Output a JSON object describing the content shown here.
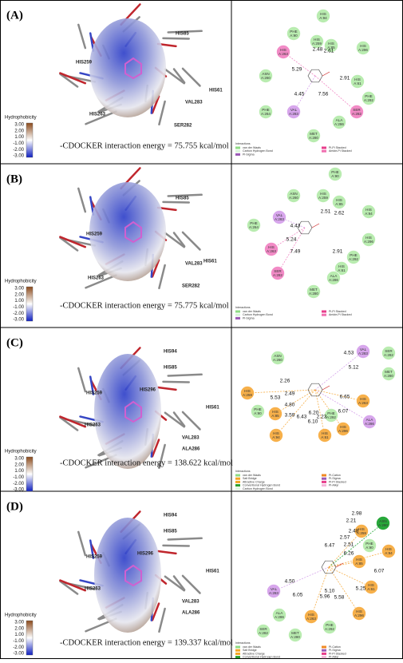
{
  "panels": [
    {
      "label": "(A)",
      "structure_labels": [
        "HIS85",
        "HIS259",
        "VAL283",
        "HIS61",
        "HIS263",
        "SER282"
      ],
      "hydrophobicity": {
        "title": "Hydrophobicity",
        "ticks": [
          "3.00",
          "2.00",
          "1.00",
          "-1.00",
          "-2.00",
          "-3.00"
        ]
      },
      "energy": "-CDOCKER interaction energy = 75.755 kcal/mol",
      "residues": [
        {
          "name": "HIS",
          "id": "A:94",
          "color": "#b9ecb0"
        },
        {
          "name": "PHE",
          "id": "A:90",
          "color": "#b9ecb0"
        },
        {
          "name": "HIS",
          "id": "A:259",
          "color": "#b9ecb0"
        },
        {
          "name": "HIS",
          "id": "A:85",
          "color": "#b9ecb0"
        },
        {
          "name": "HIS",
          "id": "A:263",
          "color": "#f28bc6"
        },
        {
          "name": "HIS",
          "id": "A:296",
          "color": "#b9ecb0"
        },
        {
          "name": "ASN",
          "id": "A:260",
          "color": "#b9ecb0"
        },
        {
          "name": "HIS",
          "id": "A:61",
          "color": "#b9ecb0"
        },
        {
          "name": "PHE",
          "id": "A:292",
          "color": "#b9ecb0"
        },
        {
          "name": "PHE",
          "id": "A:264",
          "color": "#b9ecb0"
        },
        {
          "name": "VAL",
          "id": "A:283",
          "color": "#d7a6ec"
        },
        {
          "name": "ALA",
          "id": "A:286",
          "color": "#b9ecb0"
        },
        {
          "name": "SER",
          "id": "A:282",
          "color": "#f28bc6"
        },
        {
          "name": "MET",
          "id": "A:280",
          "color": "#b9ecb0"
        }
      ],
      "distances": [
        "5.29",
        "2.48",
        "2.61",
        "4.45",
        "7.56",
        "2.91"
      ],
      "legend": {
        "title": "Interactions",
        "items": [
          {
            "label": "van der Waals",
            "color": "#8fdc85"
          },
          {
            "label": "Carbon Hydrogen Bond",
            "color": "#d9f5d9"
          },
          {
            "label": "Pi-Sigma",
            "color": "#9b59b6"
          },
          {
            "label": "Pi-Pi Stacked",
            "color": "#e83e8c"
          },
          {
            "label": "Amide-Pi Stacked",
            "color": "#f06fb0"
          }
        ]
      }
    },
    {
      "label": "(B)",
      "structure_labels": [
        "HIS85",
        "HIS259",
        "HIS61",
        "VAL283",
        "HIS263",
        "SER282"
      ],
      "hydrophobicity": {
        "title": "Hydrophobicity",
        "ticks": [
          "3.00",
          "2.00",
          "1.00",
          "-1.00",
          "-2.00",
          "-3.00"
        ]
      },
      "energy": "-CDOCKER interaction energy = 75.775 kcal/mol",
      "residues": [
        {
          "name": "PHE",
          "id": "A:90",
          "color": "#b9ecb0"
        },
        {
          "name": "ASN",
          "id": "A:260",
          "color": "#b9ecb0"
        },
        {
          "name": "HIS",
          "id": "A:259",
          "color": "#b9ecb0"
        },
        {
          "name": "HIS",
          "id": "A:85",
          "color": "#b9ecb0"
        },
        {
          "name": "HIS",
          "id": "A:94",
          "color": "#b9ecb0"
        },
        {
          "name": "PHE",
          "id": "A:264",
          "color": "#b9ecb0"
        },
        {
          "name": "VAL",
          "id": "A:283",
          "color": "#d7a6ec"
        },
        {
          "name": "HIS",
          "id": "A:263",
          "color": "#f28bc6"
        },
        {
          "name": "HIS",
          "id": "A:296",
          "color": "#b9ecb0"
        },
        {
          "name": "PHE",
          "id": "A:292",
          "color": "#b9ecb0"
        },
        {
          "name": "SER",
          "id": "A:282",
          "color": "#f28bc6"
        },
        {
          "name": "HIS",
          "id": "A:61",
          "color": "#b9ecb0"
        },
        {
          "name": "ALA",
          "id": "A:286",
          "color": "#b9ecb0"
        },
        {
          "name": "MET",
          "id": "A:280",
          "color": "#b9ecb0"
        }
      ],
      "distances": [
        "4.43",
        "2.51",
        "2.62",
        "5.24",
        "7.49",
        "2.91"
      ],
      "legend": {
        "title": "Interactions",
        "items": [
          {
            "label": "van der Waals",
            "color": "#8fdc85"
          },
          {
            "label": "Carbon Hydrogen Bond",
            "color": "#d9f5d9"
          },
          {
            "label": "Pi-Sigma",
            "color": "#9b59b6"
          },
          {
            "label": "Pi-Pi Stacked",
            "color": "#e83e8c"
          },
          {
            "label": "Amide-Pi Stacked",
            "color": "#f06fb0"
          }
        ]
      }
    },
    {
      "label": "(C)",
      "structure_labels": [
        "HIS94",
        "HIS85",
        "HIS296",
        "HIS259",
        "HIS61",
        "HIS263",
        "VAL283",
        "ALA286"
      ],
      "hydrophobicity": {
        "title": "Hydrophobicity",
        "ticks": [
          "3.00",
          "2.00",
          "1.00",
          "-1.00",
          "-2.00",
          "-3.00"
        ]
      },
      "energy": "-CDOCKER interaction energy = 138.622 kcal/mol",
      "residues": [
        {
          "name": "ASN",
          "id": "A:260",
          "color": "#b9ecb0"
        },
        {
          "name": "SER",
          "id": "A:282",
          "color": "#b9ecb0"
        },
        {
          "name": "VAL",
          "id": "A:283",
          "color": "#d7a6ec"
        },
        {
          "name": "MET",
          "id": "A:280",
          "color": "#b9ecb0"
        },
        {
          "name": "HIS",
          "id": "A:259",
          "color": "#f7b04a"
        },
        {
          "name": "HIS",
          "id": "A:263",
          "color": "#f7b04a"
        },
        {
          "name": "PHE",
          "id": "A:90",
          "color": "#b9ecb0"
        },
        {
          "name": "HIS",
          "id": "A:85",
          "color": "#f7b04a"
        },
        {
          "name": "PHE",
          "id": "A:292",
          "color": "#b9ecb0"
        },
        {
          "name": "ALA",
          "id": "A:286",
          "color": "#d7a6ec"
        },
        {
          "name": "HIS",
          "id": "A:94",
          "color": "#f7b04a"
        },
        {
          "name": "HIS",
          "id": "A:61",
          "color": "#f7b04a"
        },
        {
          "name": "HIS",
          "id": "A:296",
          "color": "#f7b04a"
        }
      ],
      "distances": [
        "2.26",
        "4.53",
        "2.49",
        "5.12",
        "5.53",
        "6.65",
        "4.80",
        "3.59",
        "6.20",
        "6.43",
        "2.23",
        "6.07",
        "6.10"
      ],
      "legend": {
        "title": "Interactions",
        "items": [
          {
            "label": "van der Waals",
            "color": "#8fdc85"
          },
          {
            "label": "Salt Bridge",
            "color": "#f5a623"
          },
          {
            "label": "Attractive Charge",
            "color": "#f5a623"
          },
          {
            "label": "Conventional Hydrogen Bond",
            "color": "#2ca02c"
          },
          {
            "label": "Carbon Hydrogen Bond",
            "color": "#dff5df"
          },
          {
            "label": "Pi-Cation",
            "color": "#f08a24"
          },
          {
            "label": "Pi-Sigma",
            "color": "#9b59b6"
          },
          {
            "label": "Pi-Pi Stacked",
            "color": "#e83e8c"
          },
          {
            "label": "Pi-Alkyl",
            "color": "#f4b6d9"
          }
        ]
      }
    },
    {
      "label": "(D)",
      "structure_labels": [
        "HIS94",
        "HIS85",
        "HIS296",
        "HIS259",
        "HIS61",
        "HIS263",
        "VAL283",
        "ALA286"
      ],
      "hydrophobicity": {
        "title": "Hydrophobicity",
        "ticks": [
          "3.00",
          "2.00",
          "1.00",
          "-1.00",
          "-2.00",
          "-3.00"
        ]
      },
      "energy": "-CDOCKER interaction energy = 139.337 kcal/mol",
      "residues": [
        {
          "name": "ASN",
          "id": "A:260",
          "color": "#27a83a"
        },
        {
          "name": "HIS",
          "id": "A:259",
          "color": "#f7b04a"
        },
        {
          "name": "PHE",
          "id": "A:90",
          "color": "#b9ecb0"
        },
        {
          "name": "HIS",
          "id": "A:94",
          "color": "#f7b04a"
        },
        {
          "name": "HIS",
          "id": "A:85",
          "color": "#f7b04a"
        },
        {
          "name": "VAL",
          "id": "A:283",
          "color": "#d7a6ec"
        },
        {
          "name": "HIS",
          "id": "A:61",
          "color": "#f7b04a"
        },
        {
          "name": "ALA",
          "id": "A:286",
          "color": "#b9ecb0"
        },
        {
          "name": "HIS",
          "id": "A:263",
          "color": "#f7b04a"
        },
        {
          "name": "HIS",
          "id": "A:296",
          "color": "#f7b04a"
        },
        {
          "name": "PHE",
          "id": "A:292",
          "color": "#b9ecb0"
        },
        {
          "name": "SER",
          "id": "A:282",
          "color": "#b9ecb0"
        },
        {
          "name": "MET",
          "id": "A:280",
          "color": "#b9ecb0"
        }
      ],
      "distances": [
        "2.98",
        "2.21",
        "2.48",
        "2.57",
        "6.07",
        "2.51",
        "6.47",
        "6.26",
        "4.50",
        "5.10",
        "5.25",
        "6.05",
        "5.96",
        "5.58"
      ],
      "legend": {
        "title": "Interactions",
        "items": [
          {
            "label": "van der Waals",
            "color": "#8fdc85"
          },
          {
            "label": "Salt Bridge",
            "color": "#f5a623"
          },
          {
            "label": "Attractive Charge",
            "color": "#f5a623"
          },
          {
            "label": "Conventional Hydrogen Bond",
            "color": "#2ca02c"
          },
          {
            "label": "Carbon Hydrogen Bond",
            "color": "#dff5df"
          },
          {
            "label": "Pi-Cation",
            "color": "#f08a24"
          },
          {
            "label": "Pi-Sigma",
            "color": "#9b59b6"
          },
          {
            "label": "Pi-Pi Stacked",
            "color": "#e83e8c"
          },
          {
            "label": "Pi-Alkyl",
            "color": "#f4b6d9"
          }
        ]
      }
    }
  ]
}
